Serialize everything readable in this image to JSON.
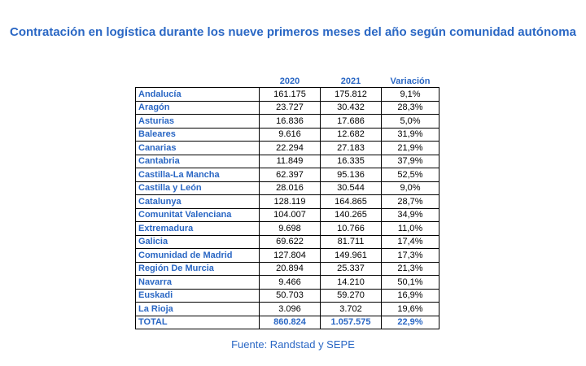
{
  "title": "Contratación en logística durante los nueve primeros meses del año según comunidad autónoma",
  "table": {
    "headers": [
      "",
      "2020",
      "2021",
      "Variación"
    ],
    "rows": [
      {
        "region": "Andalucía",
        "y2020": "161.175",
        "y2021": "175.812",
        "variation": "9,1%"
      },
      {
        "region": "Aragón",
        "y2020": "23.727",
        "y2021": "30.432",
        "variation": "28,3%"
      },
      {
        "region": "Asturias",
        "y2020": "16.836",
        "y2021": "17.686",
        "variation": "5,0%"
      },
      {
        "region": "Baleares",
        "y2020": "9.616",
        "y2021": "12.682",
        "variation": "31,9%"
      },
      {
        "region": "Canarias",
        "y2020": "22.294",
        "y2021": "27.183",
        "variation": "21,9%"
      },
      {
        "region": "Cantabria",
        "y2020": "11.849",
        "y2021": "16.335",
        "variation": "37,9%"
      },
      {
        "region": "Castilla-La Mancha",
        "y2020": "62.397",
        "y2021": "95.136",
        "variation": "52,5%"
      },
      {
        "region": "Castilla y León",
        "y2020": "28.016",
        "y2021": "30.544",
        "variation": "9,0%"
      },
      {
        "region": "Catalunya",
        "y2020": "128.119",
        "y2021": "164.865",
        "variation": "28,7%"
      },
      {
        "region": "Comunitat Valenciana",
        "y2020": "104.007",
        "y2021": "140.265",
        "variation": "34,9%"
      },
      {
        "region": "Extremadura",
        "y2020": "9.698",
        "y2021": "10.766",
        "variation": "11,0%"
      },
      {
        "region": "Galicia",
        "y2020": "69.622",
        "y2021": "81.711",
        "variation": "17,4%"
      },
      {
        "region": "Comunidad de Madrid",
        "y2020": "127.804",
        "y2021": "149.961",
        "variation": "17,3%"
      },
      {
        "region": "Región De Murcia",
        "y2020": "20.894",
        "y2021": "25.337",
        "variation": "21,3%"
      },
      {
        "region": "Navarra",
        "y2020": "9.466",
        "y2021": "14.210",
        "variation": "50,1%"
      },
      {
        "region": "Euskadi",
        "y2020": "50.703",
        "y2021": "59.270",
        "variation": "16,9%"
      },
      {
        "region": "La Rioja",
        "y2020": "3.096",
        "y2021": "3.702",
        "variation": "19,6%"
      }
    ],
    "total": {
      "region": "TOTAL",
      "y2020": "860.824",
      "y2021": "1.057.575",
      "variation": "22,9%"
    }
  },
  "source": "Fuente: Randstad y SEPE",
  "colors": {
    "accent": "#2a67c4",
    "text": "#000000",
    "background": "#ffffff"
  }
}
